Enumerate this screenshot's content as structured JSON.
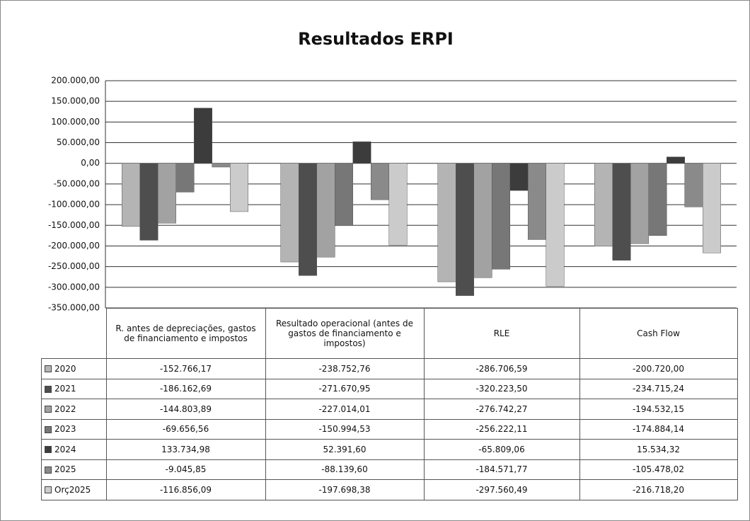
{
  "chart_data": {
    "type": "bar",
    "title": "Resultados  ERPI",
    "categories": [
      "R. antes de depreciações, gastos de financiamento e impostos",
      "Resultado operacional (antes de gastos de financiamento e impostos)",
      "RLE",
      "Cash Flow"
    ],
    "series": [
      {
        "name": "2020",
        "color": "#b4b4b4",
        "values": [
          -152766.17,
          -238752.76,
          -286706.59,
          -200720.0
        ],
        "value_labels": [
          "-152.766,17",
          "-238.752,76",
          "-286.706,59",
          "-200.720,00"
        ]
      },
      {
        "name": "2021",
        "color": "#4e4e4e",
        "values": [
          -186162.69,
          -271670.95,
          -320223.5,
          -234715.24
        ],
        "value_labels": [
          "-186.162,69",
          "-271.670,95",
          "-320.223,50",
          "-234.715,24"
        ]
      },
      {
        "name": "2022",
        "color": "#a2a2a2",
        "values": [
          -144803.89,
          -227014.01,
          -276742.27,
          -194532.15
        ],
        "value_labels": [
          "-144.803,89",
          "-227.014,01",
          "-276.742,27",
          "-194.532,15"
        ]
      },
      {
        "name": "2023",
        "color": "#777777",
        "values": [
          -69656.56,
          -150994.53,
          -256222.11,
          -174884.14
        ],
        "value_labels": [
          "-69.656,56",
          "-150.994,53",
          "-256.222,11",
          "-174.884,14"
        ]
      },
      {
        "name": "2024",
        "color": "#3c3c3c",
        "values": [
          133734.98,
          52391.6,
          -65809.06,
          15534.32
        ],
        "value_labels": [
          "133.734,98",
          "52.391,60",
          "-65.809,06",
          "15.534,32"
        ]
      },
      {
        "name": "2025",
        "color": "#8a8a8a",
        "values": [
          -9045.85,
          -88139.6,
          -184571.77,
          -105478.02
        ],
        "value_labels": [
          "-9.045,85",
          "-88.139,60",
          "-184.571,77",
          "-105.478,02"
        ]
      },
      {
        "name": "Orç2025",
        "color": "#cbcbcb",
        "values": [
          -116856.09,
          -197698.38,
          -297560.49,
          -216718.2
        ],
        "value_labels": [
          "-116.856,09",
          "-197.698,38",
          "-297.560,49",
          "-216.718,20"
        ]
      }
    ],
    "ylim": [
      -350000,
      200000
    ],
    "yticks": [
      {
        "value": 200000,
        "label": "200.000,00"
      },
      {
        "value": 150000,
        "label": "150.000,00"
      },
      {
        "value": 100000,
        "label": "100.000,00"
      },
      {
        "value": 50000,
        "label": "50.000,00"
      },
      {
        "value": 0,
        "label": "0,00"
      },
      {
        "value": -50000,
        "label": "-50.000,00"
      },
      {
        "value": -100000,
        "label": "-100.000,00"
      },
      {
        "value": -150000,
        "label": "-150.000,00"
      },
      {
        "value": -200000,
        "label": "-200.000,00"
      },
      {
        "value": -250000,
        "label": "-250.000,00"
      },
      {
        "value": -300000,
        "label": "-300.000,00"
      },
      {
        "value": -350000,
        "label": "-350.000,00"
      }
    ],
    "grid": true
  }
}
